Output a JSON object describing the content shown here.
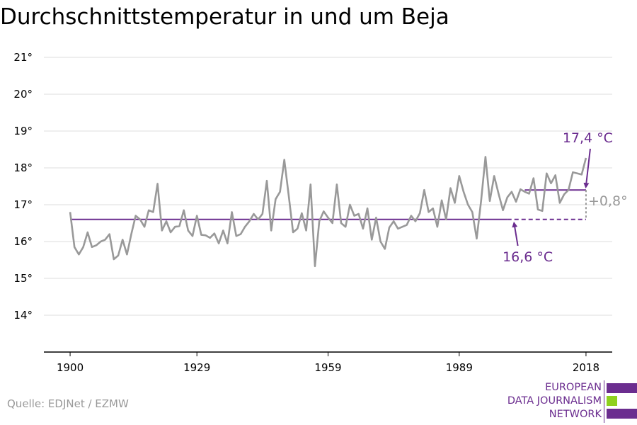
{
  "title": "Durchschnittstemperatur in und um Beja",
  "source": "Quelle: EDJNet / EZMW",
  "logo": {
    "lines": [
      "EUROPEAN",
      "DATA JOURNALISM",
      "NETWORK"
    ],
    "colors": {
      "purple": "#6b2d8f",
      "green": "#8fd11f"
    }
  },
  "colors": {
    "series": "#999999",
    "avg": "#6b2d8f",
    "grid": "#dddddd",
    "axis": "#000000",
    "delta": "#999999"
  },
  "chart_data": {
    "type": "line",
    "title": "Durchschnittstemperatur in und um Beja",
    "xlabel": "",
    "ylabel": "",
    "xlim": [
      1894,
      2024
    ],
    "ylim": [
      13,
      21
    ],
    "y_ticks": [
      14,
      15,
      16,
      17,
      18,
      19,
      20,
      21
    ],
    "y_tick_labels": [
      "14°",
      "15°",
      "16°",
      "17°",
      "18°",
      "19°",
      "20°",
      "21°"
    ],
    "x_ticks": [
      1900,
      1929,
      1959,
      1989,
      2018
    ],
    "x_tick_labels": [
      "1900",
      "1929",
      "1959",
      "1989",
      "2018"
    ],
    "grid": true,
    "series": [
      {
        "x": [
          1900,
          1901,
          1902,
          1903,
          1904,
          1905,
          1906,
          1907,
          1908,
          1909,
          1910,
          1911,
          1912,
          1913,
          1914,
          1915,
          1916,
          1917,
          1918,
          1919,
          1920,
          1921,
          1922,
          1923,
          1924,
          1925,
          1926,
          1927,
          1928,
          1929,
          1930,
          1931,
          1932,
          1933,
          1934,
          1935,
          1936,
          1937,
          1938,
          1939,
          1940,
          1941,
          1942,
          1943,
          1944,
          1945,
          1946,
          1947,
          1948,
          1949,
          1950,
          1951,
          1952,
          1953,
          1954,
          1955,
          1956,
          1957,
          1958,
          1959,
          1960,
          1961,
          1962,
          1963,
          1964,
          1965,
          1966,
          1967,
          1968,
          1969,
          1970,
          1971,
          1972,
          1973,
          1974,
          1975,
          1976,
          1977,
          1978,
          1979,
          1980,
          1981,
          1982,
          1983,
          1984,
          1985,
          1986,
          1987,
          1988,
          1989,
          1990,
          1991,
          1992,
          1993,
          1994,
          1995,
          1996,
          1997,
          1998,
          1999,
          2000,
          2001,
          2002,
          2003,
          2004,
          2005,
          2006,
          2007,
          2008,
          2009,
          2010,
          2011,
          2012,
          2013,
          2014,
          2015,
          2016,
          2017,
          2018
        ],
        "values": [
          16.8,
          15.85,
          15.65,
          15.85,
          16.25,
          15.85,
          15.9,
          16.0,
          16.05,
          16.2,
          15.52,
          15.62,
          16.05,
          15.65,
          16.2,
          16.7,
          16.6,
          16.4,
          16.85,
          16.8,
          17.57,
          16.3,
          16.55,
          16.25,
          16.4,
          16.42,
          16.85,
          16.3,
          16.15,
          16.7,
          16.18,
          16.17,
          16.1,
          16.22,
          15.95,
          16.3,
          15.95,
          16.8,
          16.15,
          16.2,
          16.4,
          16.55,
          16.75,
          16.6,
          16.75,
          17.65,
          16.3,
          17.15,
          17.35,
          18.22,
          17.25,
          16.25,
          16.35,
          16.77,
          16.3,
          17.55,
          15.33,
          16.55,
          16.82,
          16.65,
          16.5,
          17.55,
          16.5,
          16.4,
          17.0,
          16.7,
          16.75,
          16.35,
          16.9,
          16.05,
          16.65,
          16.0,
          15.8,
          16.38,
          16.55,
          16.35,
          16.4,
          16.45,
          16.7,
          16.55,
          16.77,
          17.4,
          16.8,
          16.9,
          16.4,
          17.12,
          16.6,
          17.45,
          17.05,
          17.78,
          17.35,
          17.0,
          16.8,
          16.08,
          17.1,
          18.3,
          17.1,
          17.78,
          17.3,
          16.85,
          17.2,
          17.35,
          17.08,
          17.42,
          17.35,
          17.3,
          17.72,
          16.87,
          16.83,
          17.85,
          17.58,
          17.8,
          17.05,
          17.28,
          17.4,
          17.88,
          17.85,
          17.82,
          18.27
        ]
      }
    ],
    "reference_lines": [
      {
        "value": 16.6,
        "from": 1900,
        "to": 2000,
        "style": "solid"
      },
      {
        "value": 16.6,
        "from": 2000,
        "to": 2018,
        "style": "dashed"
      },
      {
        "value": 17.4,
        "from": 2004,
        "to": 2018,
        "style": "solid"
      }
    ],
    "annotations": {
      "recent_label": "17,4 °C",
      "baseline_label": "16,6 °C",
      "delta_label": "+0,8°"
    }
  }
}
